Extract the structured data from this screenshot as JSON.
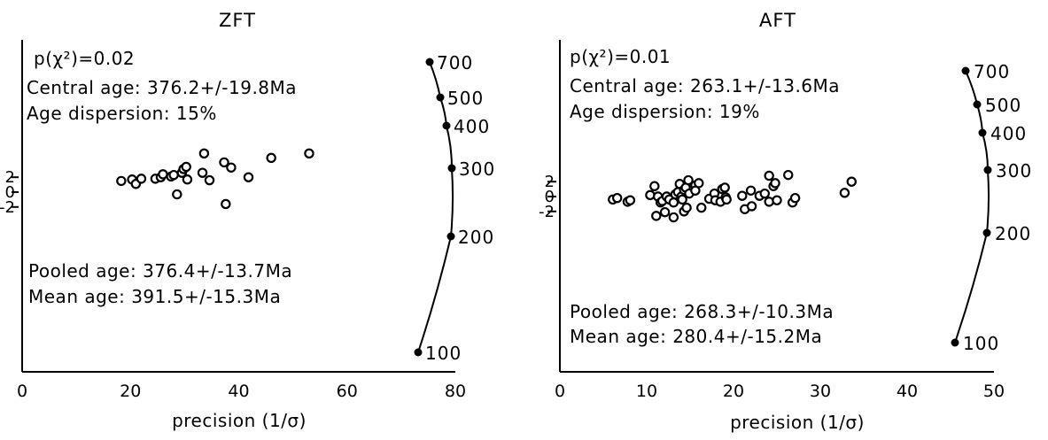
{
  "chart_data": [
    {
      "type": "scatter",
      "title": "ZFT",
      "xlabel": "precision (1/σ)",
      "xlim": [
        0,
        80
      ],
      "x_ticks": [
        "0",
        "20",
        "40",
        "60",
        "80"
      ],
      "z_ticks": [
        "2",
        "0",
        "-2"
      ],
      "stats": {
        "p_chi2": "p(χ²)=0.02",
        "central_age": "Central age: 376.2+/-19.8Ma",
        "dispersion": "Age dispersion: 15%",
        "pooled_age": "Pooled age: 376.4+/-13.7Ma",
        "mean_age": "Mean age: 391.5+/-15.3Ma"
      },
      "age_scale": [
        "700",
        "500",
        "400",
        "300",
        "200",
        "100"
      ],
      "points": [
        {
          "x": 18.3,
          "z": 1.5
        },
        {
          "x": 20.3,
          "z": 1.7
        },
        {
          "x": 21.0,
          "z": 1.1
        },
        {
          "x": 22.0,
          "z": 1.8
        },
        {
          "x": 24.6,
          "z": 1.8
        },
        {
          "x": 25.6,
          "z": 2.0
        },
        {
          "x": 26.0,
          "z": 2.4
        },
        {
          "x": 27.5,
          "z": 2.1
        },
        {
          "x": 28.0,
          "z": 2.3
        },
        {
          "x": 28.6,
          "z": -0.3
        },
        {
          "x": 29.5,
          "z": 2.6
        },
        {
          "x": 29.8,
          "z": 3.1
        },
        {
          "x": 30.3,
          "z": 3.4
        },
        {
          "x": 30.5,
          "z": 1.7
        },
        {
          "x": 33.3,
          "z": 2.6
        },
        {
          "x": 33.6,
          "z": 5.2
        },
        {
          "x": 34.6,
          "z": 1.6
        },
        {
          "x": 37.3,
          "z": 4.0
        },
        {
          "x": 37.6,
          "z": -1.6
        },
        {
          "x": 38.6,
          "z": 3.3
        },
        {
          "x": 41.8,
          "z": 2.0
        },
        {
          "x": 46.0,
          "z": 4.6
        },
        {
          "x": 53.0,
          "z": 5.2
        }
      ]
    },
    {
      "type": "scatter",
      "title": "AFT",
      "xlabel": "precision (1/σ)",
      "xlim": [
        0,
        50
      ],
      "x_ticks": [
        "0",
        "10",
        "20",
        "30",
        "40",
        "50"
      ],
      "z_ticks": [
        "2",
        "0",
        "-2"
      ],
      "stats": {
        "p_chi2": "p(χ²)=0.01",
        "central_age": "Central age: 263.1+/-13.6Ma",
        "dispersion": "Age dispersion: 19%",
        "pooled_age": "Pooled age: 268.3+/-10.3Ma",
        "mean_age": "Mean age: 280.4+/-15.2Ma"
      },
      "age_scale": [
        "700",
        "500",
        "400",
        "300",
        "200",
        "100"
      ],
      "points": [
        {
          "x": 6.1,
          "z": -0.4
        },
        {
          "x": 6.6,
          "z": -0.2
        },
        {
          "x": 7.8,
          "z": -0.7
        },
        {
          "x": 8.1,
          "z": -0.5
        },
        {
          "x": 10.4,
          "z": 0.2
        },
        {
          "x": 10.9,
          "z": 1.4
        },
        {
          "x": 11.1,
          "z": -2.6
        },
        {
          "x": 11.3,
          "z": 0.0
        },
        {
          "x": 11.6,
          "z": -0.8
        },
        {
          "x": 11.8,
          "z": -0.6
        },
        {
          "x": 12.1,
          "z": -2.1
        },
        {
          "x": 12.3,
          "z": 0.0
        },
        {
          "x": 12.6,
          "z": -0.4
        },
        {
          "x": 13.1,
          "z": -0.8
        },
        {
          "x": 13.3,
          "z": 0.3
        },
        {
          "x": 13.1,
          "z": -2.8
        },
        {
          "x": 13.6,
          "z": 0.6
        },
        {
          "x": 13.8,
          "z": 1.7
        },
        {
          "x": 14.0,
          "z": 0.0
        },
        {
          "x": 14.1,
          "z": -0.4
        },
        {
          "x": 14.3,
          "z": -2.0
        },
        {
          "x": 14.6,
          "z": -1.5
        },
        {
          "x": 14.3,
          "z": 0.9
        },
        {
          "x": 14.5,
          "z": 1.2
        },
        {
          "x": 14.8,
          "z": 2.2
        },
        {
          "x": 14.9,
          "z": 0.4
        },
        {
          "x": 15.6,
          "z": 1.5
        },
        {
          "x": 15.6,
          "z": 0.8
        },
        {
          "x": 16.0,
          "z": 1.8
        },
        {
          "x": 16.3,
          "z": -1.5
        },
        {
          "x": 17.2,
          "z": -0.3
        },
        {
          "x": 17.8,
          "z": 0.4
        },
        {
          "x": 17.9,
          "z": -0.5
        },
        {
          "x": 18.5,
          "z": -0.7
        },
        {
          "x": 18.7,
          "z": 1.0
        },
        {
          "x": 19.0,
          "z": 1.2
        },
        {
          "x": 19.1,
          "z": -0.1
        },
        {
          "x": 19.2,
          "z": -0.4
        },
        {
          "x": 21.0,
          "z": 0.1
        },
        {
          "x": 21.3,
          "z": -1.7
        },
        {
          "x": 22.0,
          "z": 0.8
        },
        {
          "x": 22.1,
          "z": -1.3
        },
        {
          "x": 23.0,
          "z": 0.1
        },
        {
          "x": 23.6,
          "z": 0.4
        },
        {
          "x": 24.1,
          "z": 2.8
        },
        {
          "x": 24.1,
          "z": -0.7
        },
        {
          "x": 24.6,
          "z": 1.4
        },
        {
          "x": 24.8,
          "z": 1.8
        },
        {
          "x": 25.0,
          "z": -0.5
        },
        {
          "x": 26.3,
          "z": 2.9
        },
        {
          "x": 26.8,
          "z": -0.8
        },
        {
          "x": 27.1,
          "z": -0.2
        },
        {
          "x": 32.8,
          "z": 0.5
        },
        {
          "x": 33.6,
          "z": 2.0
        }
      ]
    }
  ]
}
